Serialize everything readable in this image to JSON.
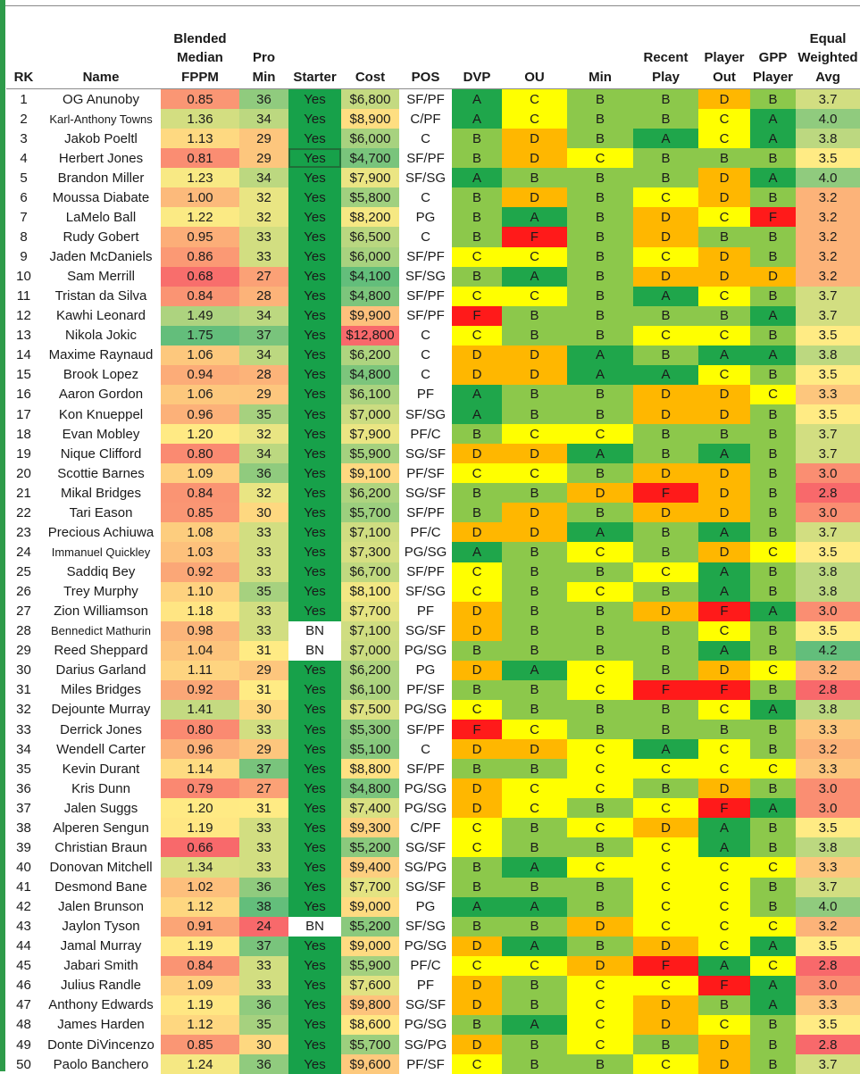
{
  "colors": {
    "grade_A": "#1fa64b",
    "grade_B": "#8cc84b",
    "grade_C": "#ffff00",
    "grade_D": "#ffb700",
    "grade_F": "#ff1a1a",
    "starter_yes": "#17a14a",
    "starter_bn": "#ffffff",
    "sheet_accent": "#2e9b4a"
  },
  "headers": {
    "rk": "RK",
    "name": "Name",
    "fppm": [
      "Blended",
      "Median",
      "FPPM"
    ],
    "min": [
      "Pro",
      "Min"
    ],
    "starter": "Starter",
    "cost": "Cost",
    "pos": "POS",
    "dvp": "DVP",
    "ou": "OU",
    "min2": "Min",
    "recent": [
      "Recent",
      "Play"
    ],
    "out": [
      "Player",
      "Out"
    ],
    "gpp": [
      "GPP",
      "Player"
    ],
    "avg": [
      "Equal",
      "Weighted",
      "Avg"
    ]
  },
  "rows": [
    {
      "rk": "1",
      "name": "OG Anunoby",
      "fppm": "0.85",
      "min": "36",
      "starter": "Yes",
      "cost": "$6,800",
      "pos": "SF/PF",
      "dvp": "A",
      "ou": "C",
      "min2": "B",
      "recent": "B",
      "out": "D",
      "gpp": "B",
      "avg": "3.7"
    },
    {
      "rk": "2",
      "name": "Karl-Anthony Towns",
      "fppm": "1.36",
      "min": "34",
      "starter": "Yes",
      "cost": "$8,900",
      "pos": "C/PF",
      "dvp": "A",
      "ou": "C",
      "min2": "B",
      "recent": "B",
      "out": "C",
      "gpp": "A",
      "avg": "4.0"
    },
    {
      "rk": "3",
      "name": "Jakob Poeltl",
      "fppm": "1.13",
      "min": "29",
      "starter": "Yes",
      "cost": "$6,000",
      "pos": "C",
      "dvp": "B",
      "ou": "D",
      "min2": "B",
      "recent": "A",
      "out": "C",
      "gpp": "A",
      "avg": "3.8"
    },
    {
      "rk": "4",
      "name": "Herbert Jones",
      "fppm": "0.81",
      "min": "29",
      "starter": "Yes",
      "cost": "$4,700",
      "pos": "SF/PF",
      "dvp": "B",
      "ou": "D",
      "min2": "C",
      "recent": "B",
      "out": "B",
      "gpp": "B",
      "avg": "3.5"
    },
    {
      "rk": "5",
      "name": "Brandon Miller",
      "fppm": "1.23",
      "min": "34",
      "starter": "Yes",
      "cost": "$7,900",
      "pos": "SF/SG",
      "dvp": "A",
      "ou": "B",
      "min2": "B",
      "recent": "B",
      "out": "D",
      "gpp": "A",
      "avg": "4.0"
    },
    {
      "rk": "6",
      "name": "Moussa Diabate",
      "fppm": "1.00",
      "min": "32",
      "starter": "Yes",
      "cost": "$5,800",
      "pos": "C",
      "dvp": "B",
      "ou": "D",
      "min2": "B",
      "recent": "C",
      "out": "D",
      "gpp": "B",
      "avg": "3.2"
    },
    {
      "rk": "7",
      "name": "LaMelo Ball",
      "fppm": "1.22",
      "min": "32",
      "starter": "Yes",
      "cost": "$8,200",
      "pos": "PG",
      "dvp": "B",
      "ou": "A",
      "min2": "B",
      "recent": "D",
      "out": "C",
      "gpp": "F",
      "avg": "3.2"
    },
    {
      "rk": "8",
      "name": "Rudy Gobert",
      "fppm": "0.95",
      "min": "33",
      "starter": "Yes",
      "cost": "$6,500",
      "pos": "C",
      "dvp": "B",
      "ou": "F",
      "min2": "B",
      "recent": "D",
      "out": "B",
      "gpp": "B",
      "avg": "3.2"
    },
    {
      "rk": "9",
      "name": "Jaden McDaniels",
      "fppm": "0.86",
      "min": "33",
      "starter": "Yes",
      "cost": "$6,000",
      "pos": "SF/PF",
      "dvp": "C",
      "ou": "C",
      "min2": "B",
      "recent": "C",
      "out": "D",
      "gpp": "B",
      "avg": "3.2"
    },
    {
      "rk": "10",
      "name": "Sam Merrill",
      "fppm": "0.68",
      "min": "27",
      "starter": "Yes",
      "cost": "$4,100",
      "pos": "SF/SG",
      "dvp": "B",
      "ou": "A",
      "min2": "B",
      "recent": "D",
      "out": "D",
      "gpp": "D",
      "avg": "3.2"
    },
    {
      "rk": "11",
      "name": "Tristan da Silva",
      "fppm": "0.84",
      "min": "28",
      "starter": "Yes",
      "cost": "$4,800",
      "pos": "SF/PF",
      "dvp": "C",
      "ou": "C",
      "min2": "B",
      "recent": "A",
      "out": "C",
      "gpp": "B",
      "avg": "3.7"
    },
    {
      "rk": "12",
      "name": "Kawhi Leonard",
      "fppm": "1.49",
      "min": "34",
      "starter": "Yes",
      "cost": "$9,900",
      "pos": "SF/PF",
      "dvp": "F",
      "ou": "B",
      "min2": "B",
      "recent": "B",
      "out": "B",
      "gpp": "A",
      "avg": "3.7"
    },
    {
      "rk": "13",
      "name": "Nikola Jokic",
      "fppm": "1.75",
      "min": "37",
      "starter": "Yes",
      "cost": "$12,800",
      "pos": "C",
      "dvp": "C",
      "ou": "B",
      "min2": "B",
      "recent": "C",
      "out": "C",
      "gpp": "B",
      "avg": "3.5"
    },
    {
      "rk": "14",
      "name": "Maxime Raynaud",
      "fppm": "1.06",
      "min": "34",
      "starter": "Yes",
      "cost": "$6,200",
      "pos": "C",
      "dvp": "D",
      "ou": "D",
      "min2": "A",
      "recent": "B",
      "out": "A",
      "gpp": "A",
      "avg": "3.8"
    },
    {
      "rk": "15",
      "name": "Brook Lopez",
      "fppm": "0.94",
      "min": "28",
      "starter": "Yes",
      "cost": "$4,800",
      "pos": "C",
      "dvp": "D",
      "ou": "D",
      "min2": "A",
      "recent": "A",
      "out": "C",
      "gpp": "B",
      "avg": "3.5"
    },
    {
      "rk": "16",
      "name": "Aaron Gordon",
      "fppm": "1.06",
      "min": "29",
      "starter": "Yes",
      "cost": "$6,100",
      "pos": "PF",
      "dvp": "A",
      "ou": "B",
      "min2": "B",
      "recent": "D",
      "out": "D",
      "gpp": "C",
      "avg": "3.3"
    },
    {
      "rk": "17",
      "name": "Kon Knueppel",
      "fppm": "0.96",
      "min": "35",
      "starter": "Yes",
      "cost": "$7,000",
      "pos": "SF/SG",
      "dvp": "A",
      "ou": "B",
      "min2": "B",
      "recent": "D",
      "out": "D",
      "gpp": "B",
      "avg": "3.5"
    },
    {
      "rk": "18",
      "name": "Evan Mobley",
      "fppm": "1.20",
      "min": "32",
      "starter": "Yes",
      "cost": "$7,900",
      "pos": "PF/C",
      "dvp": "B",
      "ou": "C",
      "min2": "C",
      "recent": "B",
      "out": "B",
      "gpp": "B",
      "avg": "3.7"
    },
    {
      "rk": "19",
      "name": "Nique Clifford",
      "fppm": "0.80",
      "min": "34",
      "starter": "Yes",
      "cost": "$5,900",
      "pos": "SG/SF",
      "dvp": "D",
      "ou": "D",
      "min2": "A",
      "recent": "B",
      "out": "A",
      "gpp": "B",
      "avg": "3.7"
    },
    {
      "rk": "20",
      "name": "Scottie Barnes",
      "fppm": "1.09",
      "min": "36",
      "starter": "Yes",
      "cost": "$9,100",
      "pos": "PF/SF",
      "dvp": "C",
      "ou": "C",
      "min2": "B",
      "recent": "D",
      "out": "D",
      "gpp": "B",
      "avg": "3.0"
    },
    {
      "rk": "21",
      "name": "Mikal Bridges",
      "fppm": "0.84",
      "min": "32",
      "starter": "Yes",
      "cost": "$6,200",
      "pos": "SG/SF",
      "dvp": "B",
      "ou": "B",
      "min2": "D",
      "recent": "F",
      "out": "D",
      "gpp": "B",
      "avg": "2.8"
    },
    {
      "rk": "22",
      "name": "Tari Eason",
      "fppm": "0.85",
      "min": "30",
      "starter": "Yes",
      "cost": "$5,700",
      "pos": "SF/PF",
      "dvp": "B",
      "ou": "D",
      "min2": "B",
      "recent": "D",
      "out": "D",
      "gpp": "B",
      "avg": "3.0"
    },
    {
      "rk": "23",
      "name": "Precious Achiuwa",
      "fppm": "1.08",
      "min": "33",
      "starter": "Yes",
      "cost": "$7,100",
      "pos": "PF/C",
      "dvp": "D",
      "ou": "D",
      "min2": "A",
      "recent": "B",
      "out": "A",
      "gpp": "B",
      "avg": "3.7"
    },
    {
      "rk": "24",
      "name": "Immanuel Quickley",
      "fppm": "1.03",
      "min": "33",
      "starter": "Yes",
      "cost": "$7,300",
      "pos": "PG/SG",
      "dvp": "A",
      "ou": "B",
      "min2": "C",
      "recent": "B",
      "out": "D",
      "gpp": "C",
      "avg": "3.5"
    },
    {
      "rk": "25",
      "name": "Saddiq Bey",
      "fppm": "0.92",
      "min": "33",
      "starter": "Yes",
      "cost": "$6,700",
      "pos": "SF/PF",
      "dvp": "C",
      "ou": "B",
      "min2": "B",
      "recent": "C",
      "out": "A",
      "gpp": "B",
      "avg": "3.8"
    },
    {
      "rk": "26",
      "name": "Trey Murphy",
      "fppm": "1.10",
      "min": "35",
      "starter": "Yes",
      "cost": "$8,100",
      "pos": "SF/SG",
      "dvp": "C",
      "ou": "B",
      "min2": "C",
      "recent": "B",
      "out": "A",
      "gpp": "B",
      "avg": "3.8"
    },
    {
      "rk": "27",
      "name": "Zion Williamson",
      "fppm": "1.18",
      "min": "33",
      "starter": "Yes",
      "cost": "$7,700",
      "pos": "PF",
      "dvp": "D",
      "ou": "B",
      "min2": "B",
      "recent": "D",
      "out": "F",
      "gpp": "A",
      "avg": "3.0"
    },
    {
      "rk": "28",
      "name": "Bennedict Mathurin",
      "fppm": "0.98",
      "min": "33",
      "starter": "BN",
      "cost": "$7,100",
      "pos": "SG/SF",
      "dvp": "D",
      "ou": "B",
      "min2": "B",
      "recent": "B",
      "out": "C",
      "gpp": "B",
      "avg": "3.5"
    },
    {
      "rk": "29",
      "name": "Reed Sheppard",
      "fppm": "1.04",
      "min": "31",
      "starter": "BN",
      "cost": "$7,000",
      "pos": "PG/SG",
      "dvp": "B",
      "ou": "B",
      "min2": "B",
      "recent": "B",
      "out": "A",
      "gpp": "B",
      "avg": "4.2"
    },
    {
      "rk": "30",
      "name": "Darius Garland",
      "fppm": "1.11",
      "min": "29",
      "starter": "Yes",
      "cost": "$6,200",
      "pos": "PG",
      "dvp": "D",
      "ou": "A",
      "min2": "C",
      "recent": "B",
      "out": "D",
      "gpp": "C",
      "avg": "3.2"
    },
    {
      "rk": "31",
      "name": "Miles Bridges",
      "fppm": "0.92",
      "min": "31",
      "starter": "Yes",
      "cost": "$6,100",
      "pos": "PF/SF",
      "dvp": "B",
      "ou": "B",
      "min2": "C",
      "recent": "F",
      "out": "F",
      "gpp": "B",
      "avg": "2.8"
    },
    {
      "rk": "32",
      "name": "Dejounte Murray",
      "fppm": "1.41",
      "min": "30",
      "starter": "Yes",
      "cost": "$7,500",
      "pos": "PG/SG",
      "dvp": "C",
      "ou": "B",
      "min2": "B",
      "recent": "B",
      "out": "C",
      "gpp": "A",
      "avg": "3.8"
    },
    {
      "rk": "33",
      "name": "Derrick Jones",
      "fppm": "0.80",
      "min": "33",
      "starter": "Yes",
      "cost": "$5,300",
      "pos": "SF/PF",
      "dvp": "F",
      "ou": "C",
      "min2": "B",
      "recent": "B",
      "out": "B",
      "gpp": "B",
      "avg": "3.3"
    },
    {
      "rk": "34",
      "name": "Wendell Carter",
      "fppm": "0.96",
      "min": "29",
      "starter": "Yes",
      "cost": "$5,100",
      "pos": "C",
      "dvp": "D",
      "ou": "D",
      "min2": "C",
      "recent": "A",
      "out": "C",
      "gpp": "B",
      "avg": "3.2"
    },
    {
      "rk": "35",
      "name": "Kevin Durant",
      "fppm": "1.14",
      "min": "37",
      "starter": "Yes",
      "cost": "$8,800",
      "pos": "SF/PF",
      "dvp": "B",
      "ou": "B",
      "min2": "C",
      "recent": "C",
      "out": "C",
      "gpp": "C",
      "avg": "3.3"
    },
    {
      "rk": "36",
      "name": "Kris Dunn",
      "fppm": "0.79",
      "min": "27",
      "starter": "Yes",
      "cost": "$4,800",
      "pos": "PG/SG",
      "dvp": "D",
      "ou": "C",
      "min2": "C",
      "recent": "B",
      "out": "D",
      "gpp": "B",
      "avg": "3.0"
    },
    {
      "rk": "37",
      "name": "Jalen Suggs",
      "fppm": "1.20",
      "min": "31",
      "starter": "Yes",
      "cost": "$7,400",
      "pos": "PG/SG",
      "dvp": "D",
      "ou": "C",
      "min2": "B",
      "recent": "C",
      "out": "F",
      "gpp": "A",
      "avg": "3.0"
    },
    {
      "rk": "38",
      "name": "Alperen Sengun",
      "fppm": "1.19",
      "min": "33",
      "starter": "Yes",
      "cost": "$9,300",
      "pos": "C/PF",
      "dvp": "C",
      "ou": "B",
      "min2": "C",
      "recent": "D",
      "out": "A",
      "gpp": "B",
      "avg": "3.5"
    },
    {
      "rk": "39",
      "name": "Christian Braun",
      "fppm": "0.66",
      "min": "33",
      "starter": "Yes",
      "cost": "$5,200",
      "pos": "SG/SF",
      "dvp": "C",
      "ou": "B",
      "min2": "B",
      "recent": "C",
      "out": "A",
      "gpp": "B",
      "avg": "3.8"
    },
    {
      "rk": "40",
      "name": "Donovan Mitchell",
      "fppm": "1.34",
      "min": "33",
      "starter": "Yes",
      "cost": "$9,400",
      "pos": "SG/PG",
      "dvp": "B",
      "ou": "A",
      "min2": "C",
      "recent": "C",
      "out": "C",
      "gpp": "C",
      "avg": "3.3"
    },
    {
      "rk": "41",
      "name": "Desmond Bane",
      "fppm": "1.02",
      "min": "36",
      "starter": "Yes",
      "cost": "$7,700",
      "pos": "SG/SF",
      "dvp": "B",
      "ou": "B",
      "min2": "B",
      "recent": "C",
      "out": "C",
      "gpp": "B",
      "avg": "3.7"
    },
    {
      "rk": "42",
      "name": "Jalen Brunson",
      "fppm": "1.12",
      "min": "38",
      "starter": "Yes",
      "cost": "$9,000",
      "pos": "PG",
      "dvp": "A",
      "ou": "A",
      "min2": "B",
      "recent": "C",
      "out": "C",
      "gpp": "B",
      "avg": "4.0"
    },
    {
      "rk": "43",
      "name": "Jaylon Tyson",
      "fppm": "0.91",
      "min": "24",
      "starter": "BN",
      "cost": "$5,200",
      "pos": "SF/SG",
      "dvp": "B",
      "ou": "B",
      "min2": "D",
      "recent": "C",
      "out": "C",
      "gpp": "C",
      "avg": "3.2"
    },
    {
      "rk": "44",
      "name": "Jamal Murray",
      "fppm": "1.19",
      "min": "37",
      "starter": "Yes",
      "cost": "$9,000",
      "pos": "PG/SG",
      "dvp": "D",
      "ou": "A",
      "min2": "B",
      "recent": "D",
      "out": "C",
      "gpp": "A",
      "avg": "3.5"
    },
    {
      "rk": "45",
      "name": "Jabari Smith",
      "fppm": "0.84",
      "min": "33",
      "starter": "Yes",
      "cost": "$5,900",
      "pos": "PF/C",
      "dvp": "C",
      "ou": "C",
      "min2": "D",
      "recent": "F",
      "out": "A",
      "gpp": "C",
      "avg": "2.8"
    },
    {
      "rk": "46",
      "name": "Julius Randle",
      "fppm": "1.09",
      "min": "33",
      "starter": "Yes",
      "cost": "$7,600",
      "pos": "PF",
      "dvp": "D",
      "ou": "B",
      "min2": "C",
      "recent": "C",
      "out": "F",
      "gpp": "A",
      "avg": "3.0"
    },
    {
      "rk": "47",
      "name": "Anthony Edwards",
      "fppm": "1.19",
      "min": "36",
      "starter": "Yes",
      "cost": "$9,800",
      "pos": "SG/SF",
      "dvp": "D",
      "ou": "B",
      "min2": "C",
      "recent": "D",
      "out": "B",
      "gpp": "A",
      "avg": "3.3"
    },
    {
      "rk": "48",
      "name": "James Harden",
      "fppm": "1.12",
      "min": "35",
      "starter": "Yes",
      "cost": "$8,600",
      "pos": "PG/SG",
      "dvp": "B",
      "ou": "A",
      "min2": "C",
      "recent": "D",
      "out": "C",
      "gpp": "B",
      "avg": "3.5"
    },
    {
      "rk": "49",
      "name": "Donte DiVincenzo",
      "fppm": "0.85",
      "min": "30",
      "starter": "Yes",
      "cost": "$5,700",
      "pos": "SG/PG",
      "dvp": "D",
      "ou": "B",
      "min2": "C",
      "recent": "B",
      "out": "D",
      "gpp": "B",
      "avg": "2.8"
    },
    {
      "rk": "50",
      "name": "Paolo Banchero",
      "fppm": "1.24",
      "min": "36",
      "starter": "Yes",
      "cost": "$9,600",
      "pos": "PF/SF",
      "dvp": "C",
      "ou": "B",
      "min2": "B",
      "recent": "C",
      "out": "D",
      "gpp": "B",
      "avg": "3.7"
    }
  ]
}
